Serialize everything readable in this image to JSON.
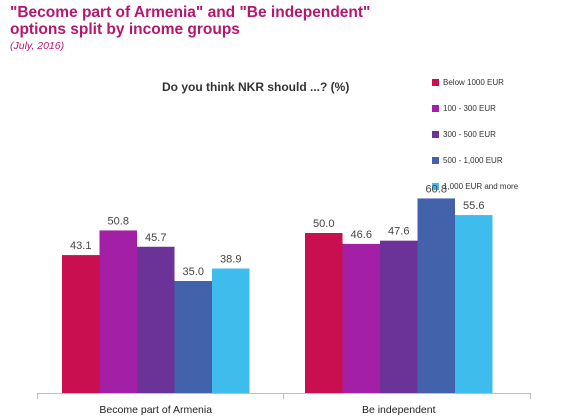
{
  "header": {
    "title": "\"Become part of Armenia\" and \"Be independent\" options split by income groups",
    "subtitle": "(July, 2016)",
    "question": "Do you think NKR should ...? (%)"
  },
  "colors": {
    "title": "#b5176e",
    "axis": "#bfbfbf"
  },
  "chart_data": {
    "type": "bar",
    "title": "\"Become part of Armenia\" and \"Be independent\" options split by income groups",
    "subtitle": "(July, 2016)",
    "question": "Do you think NKR should ...? (%)",
    "categories": [
      "Become part of Armenia",
      "Be independent"
    ],
    "series": [
      {
        "name": "Below 1000 EUR",
        "color": "#c90f4f",
        "values": [
          43.1,
          50.0
        ]
      },
      {
        "name": "100 - 300 EUR",
        "color": "#a31fa5",
        "values": [
          50.8,
          46.6
        ]
      },
      {
        "name": "300 - 500 EUR",
        "color": "#6b3397",
        "values": [
          45.7,
          47.6
        ]
      },
      {
        "name": "500 - 1,000 EUR",
        "color": "#4262ac",
        "values": [
          35.0,
          60.8
        ]
      },
      {
        "name": "1,000 EUR and more",
        "color": "#3ebded",
        "values": [
          38.9,
          55.6
        ]
      }
    ],
    "value_labels": [
      [
        "43.1",
        "50.8",
        "45.7",
        "35.0",
        "38.9"
      ],
      [
        "50.0",
        "46.6",
        "47.6",
        "60.8",
        "55.6"
      ]
    ],
    "ylim": [
      0,
      100
    ],
    "grid": false,
    "legend_position": "right"
  }
}
